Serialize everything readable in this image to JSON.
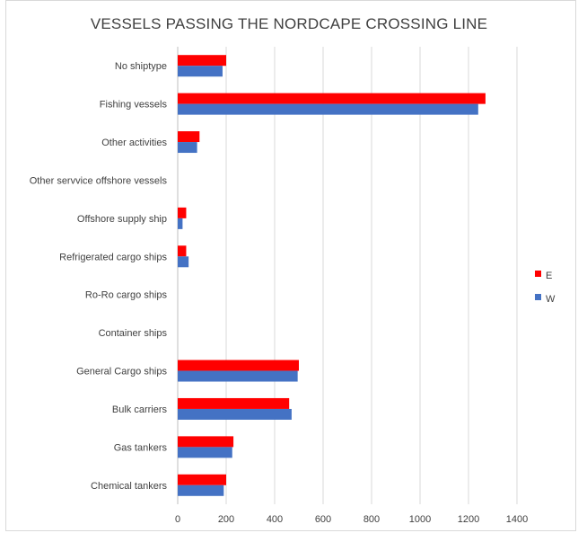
{
  "chart_data": {
    "type": "bar",
    "orientation": "horizontal",
    "title": "VESSELS PASSING THE NORDCAPE CROSSING LINE",
    "categories": [
      "No shiptype",
      "Fishing vessels",
      "Other activities",
      "Other servvice offshore vessels",
      "Offshore supply ship",
      "Refrigerated cargo ships",
      "Ro-Ro cargo ships",
      "Container ships",
      "General Cargo ships",
      "Bulk carriers",
      "Gas tankers",
      "Chemical tankers"
    ],
    "series": [
      {
        "name": "E",
        "color": "#ff0000",
        "values": [
          200,
          1270,
          90,
          0,
          35,
          35,
          0,
          0,
          500,
          460,
          230,
          200
        ]
      },
      {
        "name": "W",
        "color": "#4472c4",
        "values": [
          185,
          1240,
          80,
          0,
          20,
          45,
          0,
          0,
          495,
          470,
          225,
          190
        ]
      }
    ],
    "xlim": [
      0,
      1400
    ],
    "xticks": [
      "0",
      "200",
      "400",
      "600",
      "800",
      "1000",
      "1200",
      "1400"
    ],
    "grid": true,
    "legend": "right"
  }
}
